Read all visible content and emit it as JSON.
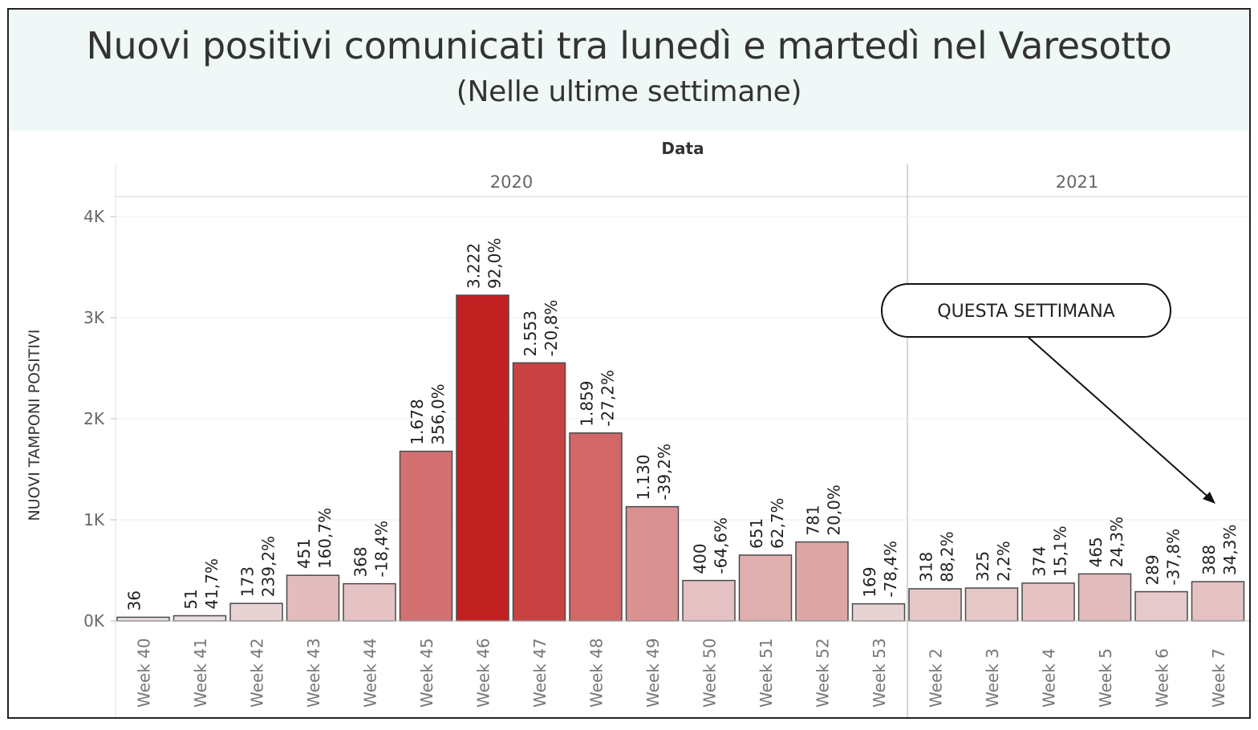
{
  "title": "Nuovi positivi comunicati tra lunedì e martedì nel Varesotto",
  "subtitle": "(Nelle ultime settimane)",
  "chart_data": {
    "type": "bar",
    "column_header": "Data",
    "years": [
      {
        "label": "2020",
        "weeks": [
          "Week 40",
          "Week 41",
          "Week 42",
          "Week 43",
          "Week 44",
          "Week 45",
          "Week 46",
          "Week 47",
          "Week 48",
          "Week 49",
          "Week 50",
          "Week 51",
          "Week 52",
          "Week 53"
        ]
      },
      {
        "label": "2021",
        "weeks": [
          "Week 2",
          "Week 3",
          "Week 4",
          "Week 5",
          "Week 6",
          "Week 7"
        ]
      }
    ],
    "categories": [
      "Week 40",
      "Week 41",
      "Week 42",
      "Week 43",
      "Week 44",
      "Week 45",
      "Week 46",
      "Week 47",
      "Week 48",
      "Week 49",
      "Week 50",
      "Week 51",
      "Week 52",
      "Week 53",
      "Week 2",
      "Week 3",
      "Week 4",
      "Week 5",
      "Week 6",
      "Week 7"
    ],
    "values": [
      36,
      51,
      173,
      451,
      368,
      1678,
      3222,
      2553,
      1859,
      1130,
      400,
      651,
      781,
      169,
      318,
      325,
      374,
      465,
      289,
      388
    ],
    "value_labels": [
      "36",
      "51",
      "173",
      "451",
      "368",
      "1.678",
      "3.222",
      "2.553",
      "1.859",
      "1.130",
      "400",
      "651",
      "781",
      "169",
      "318",
      "325",
      "374",
      "465",
      "289",
      "388"
    ],
    "change_labels": [
      "",
      "41,7%",
      "239,2%",
      "160,7%",
      "-18,4%",
      "356,0%",
      "92,0%",
      "-20,8%",
      "-27,2%",
      "-39,2%",
      "-64,6%",
      "62,7%",
      "20,0%",
      "-78,4%",
      "88,2%",
      "2,2%",
      "15,1%",
      "24,3%",
      "-37,8%",
      "34,3%"
    ],
    "ylabel": "NUOVI TAMPONI POSITIVI",
    "yticks": [
      0,
      1000,
      2000,
      3000,
      4000
    ],
    "ytick_labels": [
      "0K",
      "1K",
      "2K",
      "3K",
      "4K"
    ],
    "ylim": [
      0,
      4000
    ],
    "color_low": "#ece6e7",
    "color_high": "#c22121",
    "grid": true,
    "annotation": "QUESTA SETTIMANA"
  }
}
